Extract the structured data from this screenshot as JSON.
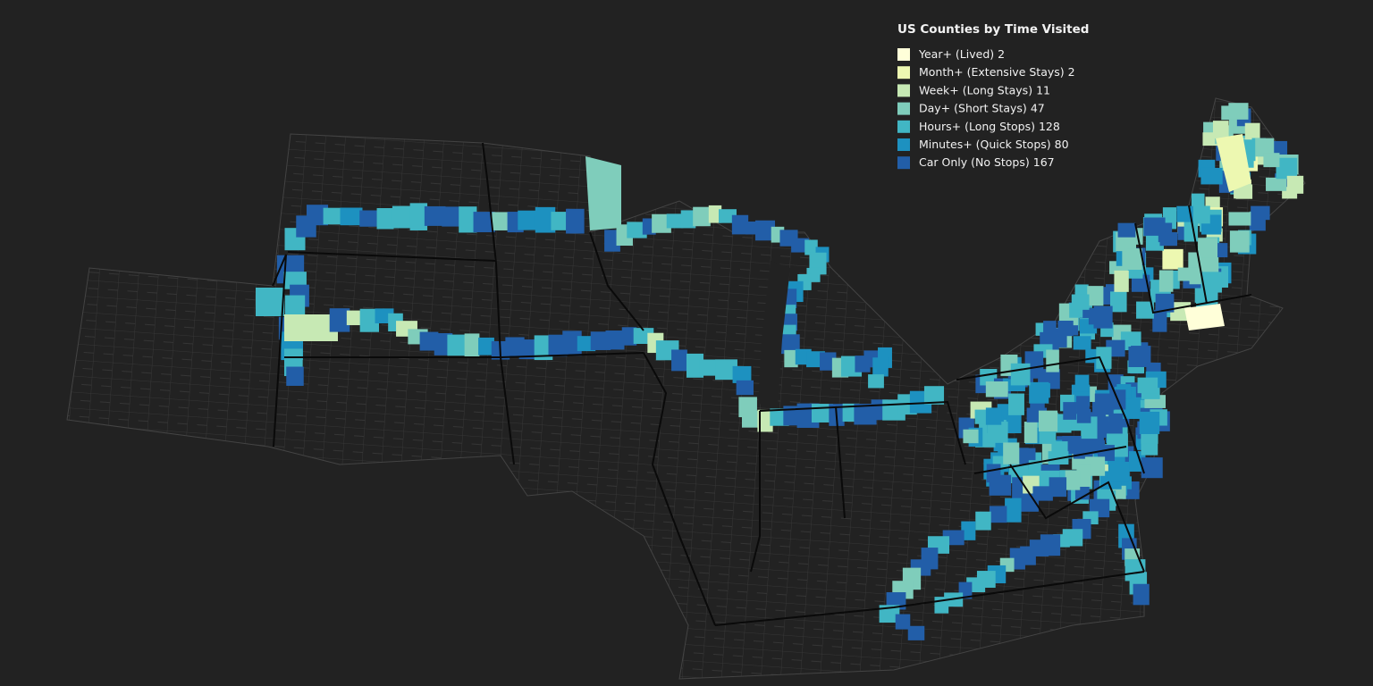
{
  "legend": {
    "title": "US Counties by Time Visited",
    "items": [
      {
        "label": "Year+ (Lived)",
        "count": 2,
        "color": "#ffffd9"
      },
      {
        "label": "Month+ (Extensive Stays)",
        "count": 2,
        "color": "#edf8b1"
      },
      {
        "label": "Week+ (Long Stays)",
        "count": 11,
        "color": "#c7e9b4"
      },
      {
        "label": "Day+ (Short Stays)",
        "count": 47,
        "color": "#7fcdbb"
      },
      {
        "label": "Hours+ (Long Stops)",
        "count": 128,
        "color": "#41b6c4"
      },
      {
        "label": "Minutes+ (Quick Stops)",
        "count": 80,
        "color": "#1d91c0"
      },
      {
        "label": "Car Only (No Stops)",
        "count": 167,
        "color": "#225ea8"
      }
    ]
  }
}
